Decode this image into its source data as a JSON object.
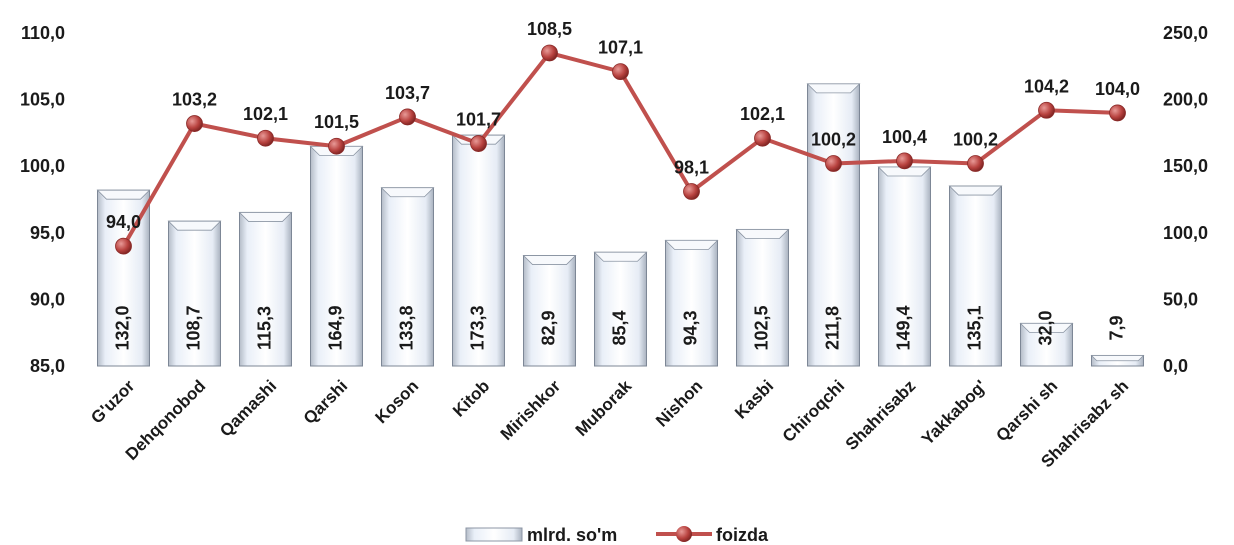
{
  "chart_data": {
    "type": "bar",
    "categories": [
      "G'uzor",
      "Dehqonobod",
      "Qamashi",
      "Qarshi",
      "Koson",
      "Kitob",
      "Mirishkor",
      "Muborak",
      "Nishon",
      "Kasbi",
      "Chiroqchi",
      "Shahrisabz",
      "Yakkabog'",
      "Qarshi sh",
      "Shahrisabz sh"
    ],
    "title": "",
    "xlabel": "",
    "ylabel": "",
    "series": [
      {
        "name": "mlrd. so'm",
        "type": "bar",
        "axis": "right",
        "values": [
          132.0,
          108.7,
          115.3,
          164.9,
          133.8,
          173.3,
          82.9,
          85.4,
          94.3,
          102.5,
          211.8,
          149.4,
          135.1,
          32.0,
          7.9
        ],
        "labels": [
          "132,0",
          "108,7",
          "115,3",
          "164,9",
          "133,8",
          "173,3",
          "82,9",
          "85,4",
          "94,3",
          "102,5",
          "211,8",
          "149,4",
          "135,1",
          "32,0",
          "7,9"
        ]
      },
      {
        "name": "foizda",
        "type": "line",
        "axis": "left",
        "values": [
          94.0,
          103.2,
          102.1,
          101.5,
          103.7,
          101.7,
          108.5,
          107.1,
          98.1,
          102.1,
          100.2,
          100.4,
          100.2,
          104.2,
          104.0
        ],
        "labels": [
          "94,0",
          "103,2",
          "102,1",
          "101,5",
          "103,7",
          "101,7",
          "108,5",
          "107,1",
          "98,1",
          "102,1",
          "100,2",
          "100,4",
          "100,2",
          "104,2",
          "104,0"
        ],
        "color": "#c0504d"
      }
    ],
    "y_left": {
      "min": 85,
      "max": 110,
      "ticks": [
        "85,0",
        "90,0",
        "95,0",
        "100,0",
        "105,0",
        "110,0"
      ]
    },
    "y_right": {
      "min": 0,
      "max": 250,
      "ticks": [
        "0,0",
        "50,0",
        "100,0",
        "150,0",
        "200,0",
        "250,0"
      ]
    },
    "grid": false,
    "legend": "bottom"
  }
}
